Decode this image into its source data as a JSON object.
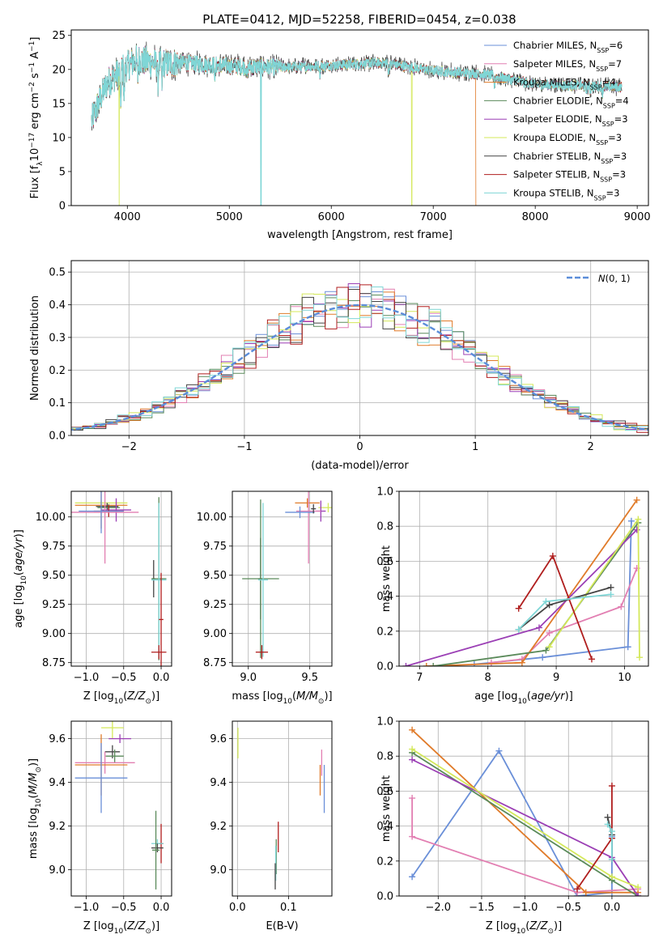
{
  "title": "PLATE=0412, MJD=52258, FIBERID=0454, z=0.038",
  "colors": {
    "Chabrier MILES": "#6a8fd8",
    "Salpeter MILES": "#e27fb2",
    "Kroupa MILES": "#e07b2a",
    "Chabrier ELODIE": "#5a8a5a",
    "Salpeter ELODIE": "#9b3fb5",
    "Kroupa ELODIE": "#d4e85a",
    "Chabrier STELIB": "#444444",
    "Salpeter STELIB": "#b01e1e",
    "Kroupa STELIB": "#7fd6d6",
    "gauss": "#5b8dd9"
  },
  "chart_data": [
    {
      "id": "spectrum",
      "type": "line",
      "xlabel": "wavelength [Angstrom, rest frame]",
      "ylabel": "Flux [f_λ 10^-17 erg cm^-2 s^-1 A^-1]",
      "xlim": [
        3450,
        9110
      ],
      "ylim": [
        0,
        25.8
      ],
      "xticks": [
        4000,
        5000,
        6000,
        7000,
        8000,
        9000
      ],
      "yticks": [
        0,
        5,
        10,
        15,
        20,
        25
      ],
      "legend_loc": "upper right",
      "legend": [
        "Chabrier MILES, N_SSP=6",
        "Salpeter MILES, N_SSP=7",
        "Kroupa MILES, N_SSP=4",
        "Chabrier ELODIE, N_SSP=4",
        "Salpeter ELODIE, N_SSP=3",
        "Kroupa ELODIE, N_SSP=3",
        "Chabrier STELIB, N_SSP=3",
        "Salpeter STELIB, N_SSP=3",
        "Kroupa STELIB, N_SSP=3"
      ],
      "data_xrange": [
        3650,
        8850
      ],
      "trend": {
        "x": [
          3650,
          3800,
          3950,
          4100,
          4300,
          4500,
          5000,
          5500,
          6000,
          6500,
          7000,
          7500,
          8000,
          8500,
          8850
        ],
        "y": [
          12.5,
          18,
          20,
          21.5,
          20.8,
          21,
          20.5,
          20.3,
          20.6,
          21,
          19.8,
          19.3,
          17.8,
          17.6,
          17.4
        ]
      },
      "drops": [
        [
          3920,
          "Kroupa ELODIE"
        ],
        [
          5310,
          "Kroupa STELIB"
        ],
        [
          6790,
          "Kroupa ELODIE"
        ],
        [
          7420,
          "Kroupa MILES"
        ]
      ]
    },
    {
      "id": "residuals",
      "type": "step",
      "xlabel": "(data-model)/error",
      "ylabel": "Normed distribution",
      "xlim": [
        -2.5,
        2.5
      ],
      "ylim": [
        0,
        0.535
      ],
      "xticks": [
        -2,
        -1,
        0,
        1,
        2
      ],
      "yticks": [
        0.0,
        0.1,
        0.2,
        0.3,
        0.4,
        0.5
      ],
      "legend": [
        "N(0,1)"
      ],
      "legend_loc": "upper right"
    },
    {
      "id": "age_vs_Z",
      "type": "errorbar",
      "xlabel": "Z [log10(Z/Z_⊙)]",
      "ylabel": "age  [log10(age/yr)]",
      "xlim": [
        -1.2,
        0.14
      ],
      "ylim": [
        8.72,
        10.22
      ],
      "xticks": [
        -1.0,
        -0.5,
        0.0
      ],
      "yticks": [
        8.75,
        9.0,
        9.25,
        9.5,
        9.75,
        10.0
      ],
      "points": [
        {
          "s": "Kroupa ELODIE",
          "x": -0.8,
          "xerr": 0.35,
          "y": 10.12,
          "yerr": 0.02
        },
        {
          "s": "Kroupa MILES",
          "x": -0.8,
          "xerr": 0.35,
          "y": 10.1,
          "yerr": 0.2
        },
        {
          "s": "Chabrier STELIB",
          "x": -0.72,
          "xerr": 0.15,
          "y": 10.09,
          "yerr": 0.03
        },
        {
          "s": "Chabrier ELODIE",
          "x": -0.7,
          "xerr": 0.15,
          "y": 10.08,
          "yerr": 0.03
        },
        {
          "s": "Salpeter ELODIE",
          "x": -0.6,
          "xerr": 0.2,
          "y": 10.06,
          "yerr": 0.1
        },
        {
          "s": "Salpeter STELIB",
          "x": -0.7,
          "xerr": 0.2,
          "y": 10.05,
          "yerr": 0.05
        },
        {
          "s": "Salpeter MILES",
          "x": -0.75,
          "xerr": 0.45,
          "y": 10.04,
          "yerr": 0.44
        },
        {
          "s": "Chabrier MILES",
          "x": -0.8,
          "xerr": 0.3,
          "y": 10.05,
          "yerr": 0.19
        },
        {
          "s": "Chabrier STELIB",
          "x": -0.1,
          "xerr": 0.02,
          "y": 9.47,
          "yerr": 0.16
        },
        {
          "s": "Chabrier ELODIE",
          "x": -0.03,
          "xerr": 0.1,
          "y": 9.47,
          "yerr": 0.7
        },
        {
          "s": "Kroupa STELIB",
          "x": -0.03,
          "xerr": 0.1,
          "y": 9.46,
          "yerr": 0.66
        },
        {
          "s": "Salpeter STELIB",
          "x": 0.0,
          "xerr": 0.03,
          "y": 9.12,
          "yerr": 0.4
        },
        {
          "s": "Salpeter STELIB",
          "x": -0.03,
          "xerr": 0.1,
          "y": 8.84,
          "yerr": 0.06
        }
      ]
    },
    {
      "id": "age_vs_mass",
      "type": "errorbar",
      "xlabel": "mass [log10(M/M_⊙)]",
      "ylabel": "",
      "xlim": [
        8.87,
        9.68
      ],
      "ylim": [
        8.72,
        10.22
      ],
      "xticks": [
        9.0,
        9.5
      ],
      "yticks": [
        8.75,
        9.0,
        9.25,
        9.5,
        9.75,
        10.0
      ],
      "points": [
        {
          "s": "Kroupa ELODIE",
          "x": 9.65,
          "xerr": 0.08,
          "y": 10.08,
          "yerr": 0.04
        },
        {
          "s": "Kroupa MILES",
          "x": 9.48,
          "xerr": 0.1,
          "y": 10.12,
          "yerr": 0.04
        },
        {
          "s": "Salpeter ELODIE",
          "x": 9.59,
          "xerr": 0.04,
          "y": 10.05,
          "yerr": 0.09
        },
        {
          "s": "Salpeter MILES",
          "x": 9.49,
          "xerr": 0.1,
          "y": 10.05,
          "yerr": 0.45
        },
        {
          "s": "Chabrier MILES",
          "x": 9.42,
          "xerr": 0.12,
          "y": 10.04,
          "yerr": 0.05
        },
        {
          "s": "Chabrier STELIB",
          "x": 9.53,
          "xerr": 0.02,
          "y": 10.07,
          "yerr": 0.04
        },
        {
          "s": "Chabrier STELIB",
          "x": 9.1,
          "xerr": 0.02,
          "y": 9.47,
          "yerr": 0.35
        },
        {
          "s": "Chabrier ELODIE",
          "x": 9.1,
          "xerr": 0.15,
          "y": 9.47,
          "yerr": 0.68
        },
        {
          "s": "Kroupa STELIB",
          "x": 9.12,
          "xerr": 0.04,
          "y": 9.46,
          "yerr": 0.66
        },
        {
          "s": "Salpeter STELIB",
          "x": 9.11,
          "xerr": 0.05,
          "y": 8.84,
          "yerr": 0.06
        }
      ]
    },
    {
      "id": "weight_vs_age",
      "type": "line",
      "xlabel": "age  [log10(age/yr)]",
      "ylabel": "mass weight",
      "xlim": [
        6.7,
        10.35
      ],
      "ylim": [
        0,
        1.0
      ],
      "xticks": [
        7,
        8,
        9,
        10
      ],
      "yticks": [
        0.0,
        0.2,
        0.4,
        0.6,
        0.8,
        1.0
      ],
      "series": [
        {
          "s": "Chabrier MILES",
          "x": [
            7.8,
            8.8,
            10.05,
            10.1
          ],
          "y": [
            0.01,
            0.05,
            0.11,
            0.83
          ]
        },
        {
          "s": "Salpeter MILES",
          "x": [
            8.05,
            8.5,
            8.9,
            9.95,
            10.18
          ],
          "y": [
            0.02,
            0.04,
            0.19,
            0.34,
            0.56
          ]
        },
        {
          "s": "Kroupa MILES",
          "x": [
            7.1,
            8.5,
            10.18
          ],
          "y": [
            0.0,
            0.02,
            0.95
          ]
        },
        {
          "s": "Chabrier ELODIE",
          "x": [
            7.2,
            8.85,
            10.2
          ],
          "y": [
            0.0,
            0.09,
            0.82
          ]
        },
        {
          "s": "Salpeter ELODIE",
          "x": [
            6.8,
            8.75,
            10.18
          ],
          "y": [
            0.0,
            0.22,
            0.78
          ]
        },
        {
          "s": "Kroupa ELODIE",
          "x": [
            8.9,
            10.2,
            10.22
          ],
          "y": [
            0.11,
            0.84,
            0.05
          ]
        },
        {
          "s": "Chabrier STELIB",
          "x": [
            8.45,
            8.9,
            9.8
          ],
          "y": [
            0.21,
            0.35,
            0.45
          ]
        },
        {
          "s": "Salpeter STELIB",
          "x": [
            8.45,
            8.95,
            9.52
          ],
          "y": [
            0.33,
            0.63,
            0.04
          ]
        },
        {
          "s": "Kroupa STELIB",
          "x": [
            8.45,
            8.85,
            9.8
          ],
          "y": [
            0.21,
            0.37,
            0.41
          ]
        }
      ]
    },
    {
      "id": "mass_vs_Z",
      "type": "errorbar",
      "xlabel": "Z [log10(Z/Z_⊙)]",
      "ylabel": "mass [log10(M/M_⊙)]",
      "xlim": [
        -1.2,
        0.14
      ],
      "ylim": [
        8.88,
        9.68
      ],
      "xticks": [
        -1.0,
        -0.5,
        0.0
      ],
      "yticks": [
        9.0,
        9.2,
        9.4,
        9.6
      ],
      "points": [
        {
          "s": "Kroupa ELODIE",
          "x": -0.65,
          "xerr": 0.15,
          "y": 9.65,
          "yerr": 0.05
        },
        {
          "s": "Salpeter ELODIE",
          "x": -0.55,
          "xerr": 0.15,
          "y": 9.6,
          "yerr": 0.02
        },
        {
          "s": "Chabrier STELIB",
          "x": -0.65,
          "xerr": 0.1,
          "y": 9.54,
          "yerr": 0.03
        },
        {
          "s": "Chabrier ELODIE",
          "x": -0.62,
          "xerr": 0.12,
          "y": 9.52,
          "yerr": 0.03
        },
        {
          "s": "Salpeter MILES",
          "x": -0.75,
          "xerr": 0.4,
          "y": 9.49,
          "yerr": 0.05
        },
        {
          "s": "Kroupa MILES",
          "x": -0.8,
          "xerr": 0.35,
          "y": 9.48,
          "yerr": 0.14
        },
        {
          "s": "Chabrier MILES",
          "x": -0.8,
          "xerr": 0.35,
          "y": 9.42,
          "yerr": 0.16
        },
        {
          "s": "Salpeter STELIB",
          "x": 0.0,
          "xerr": 0.03,
          "y": 9.12,
          "yerr": 0.09
        },
        {
          "s": "Kroupa STELIB",
          "x": -0.05,
          "xerr": 0.08,
          "y": 9.12,
          "yerr": 0.02
        },
        {
          "s": "Chabrier STELIB",
          "x": -0.05,
          "xerr": 0.08,
          "y": 9.1,
          "yerr": 0.02
        },
        {
          "s": "Chabrier ELODIE",
          "x": -0.07,
          "xerr": 0.05,
          "y": 9.09,
          "yerr": 0.18
        }
      ]
    },
    {
      "id": "mass_vs_EBV",
      "type": "errorbar",
      "xlabel": "E(B-V)",
      "ylabel": "",
      "xlim": [
        -0.01,
        0.185
      ],
      "ylim": [
        8.88,
        9.68
      ],
      "xticks": [
        0.0,
        0.1
      ],
      "yticks": [
        9.0,
        9.2,
        9.4,
        9.6
      ],
      "points": [
        {
          "s": "Kroupa ELODIE",
          "x": 0.001,
          "y": 9.58,
          "yerr": 0.07
        },
        {
          "s": "Salpeter MILES",
          "x": 0.165,
          "y": 9.49,
          "yerr": 0.06
        },
        {
          "s": "Kroupa MILES",
          "x": 0.162,
          "y": 9.41,
          "yerr": 0.07
        },
        {
          "s": "Chabrier MILES",
          "x": 0.17,
          "y": 9.37,
          "yerr": 0.11
        },
        {
          "s": "Salpeter STELIB",
          "x": 0.08,
          "y": 9.15,
          "yerr": 0.07
        },
        {
          "s": "Chabrier ELODIE",
          "x": 0.076,
          "y": 9.06,
          "yerr": 0.08
        },
        {
          "s": "Kroupa STELIB",
          "x": 0.075,
          "y": 9.03,
          "yerr": 0.08
        },
        {
          "s": "Chabrier STELIB",
          "x": 0.074,
          "y": 8.97,
          "yerr": 0.06
        }
      ]
    },
    {
      "id": "weight_vs_Z",
      "type": "line",
      "xlabel": "Z [log10(Z/Z_⊙)]",
      "ylabel": "mass weight",
      "xlim": [
        -2.45,
        0.42
      ],
      "ylim": [
        0,
        1.0
      ],
      "xticks": [
        -2.0,
        -1.5,
        -1.0,
        -0.5,
        0.0
      ],
      "yticks": [
        0.0,
        0.2,
        0.4,
        0.6,
        0.8,
        1.0
      ],
      "series": [
        {
          "s": "Chabrier MILES",
          "x": [
            -2.3,
            -1.3,
            -0.4,
            0.0,
            0.0
          ],
          "y": [
            0.11,
            0.83,
            0.0,
            0.02,
            0.34
          ]
        },
        {
          "s": "Salpeter MILES",
          "x": [
            -2.3,
            -2.3,
            -0.4,
            0.3
          ],
          "y": [
            0.56,
            0.34,
            0.02,
            0.04
          ]
        },
        {
          "s": "Kroupa MILES",
          "x": [
            -2.3,
            -0.3,
            0.3
          ],
          "y": [
            0.95,
            0.02,
            0.02
          ]
        },
        {
          "s": "Chabrier ELODIE",
          "x": [
            -2.3,
            0.0,
            0.3
          ],
          "y": [
            0.82,
            0.09,
            0.0
          ]
        },
        {
          "s": "Salpeter ELODIE",
          "x": [
            -2.3,
            0.0,
            0.3
          ],
          "y": [
            0.78,
            0.22,
            0.0
          ]
        },
        {
          "s": "Kroupa ELODIE",
          "x": [
            -2.3,
            0.0,
            0.3
          ],
          "y": [
            0.84,
            0.11,
            0.05
          ]
        },
        {
          "s": "Chabrier STELIB",
          "x": [
            -0.05,
            0.0,
            0.0
          ],
          "y": [
            0.45,
            0.35,
            0.21
          ]
        },
        {
          "s": "Salpeter STELIB",
          "x": [
            -0.4,
            0.0,
            0.0
          ],
          "y": [
            0.04,
            0.33,
            0.63
          ]
        },
        {
          "s": "Kroupa STELIB",
          "x": [
            -0.05,
            0.0,
            0.0
          ],
          "y": [
            0.41,
            0.37,
            0.21
          ]
        }
      ]
    }
  ]
}
